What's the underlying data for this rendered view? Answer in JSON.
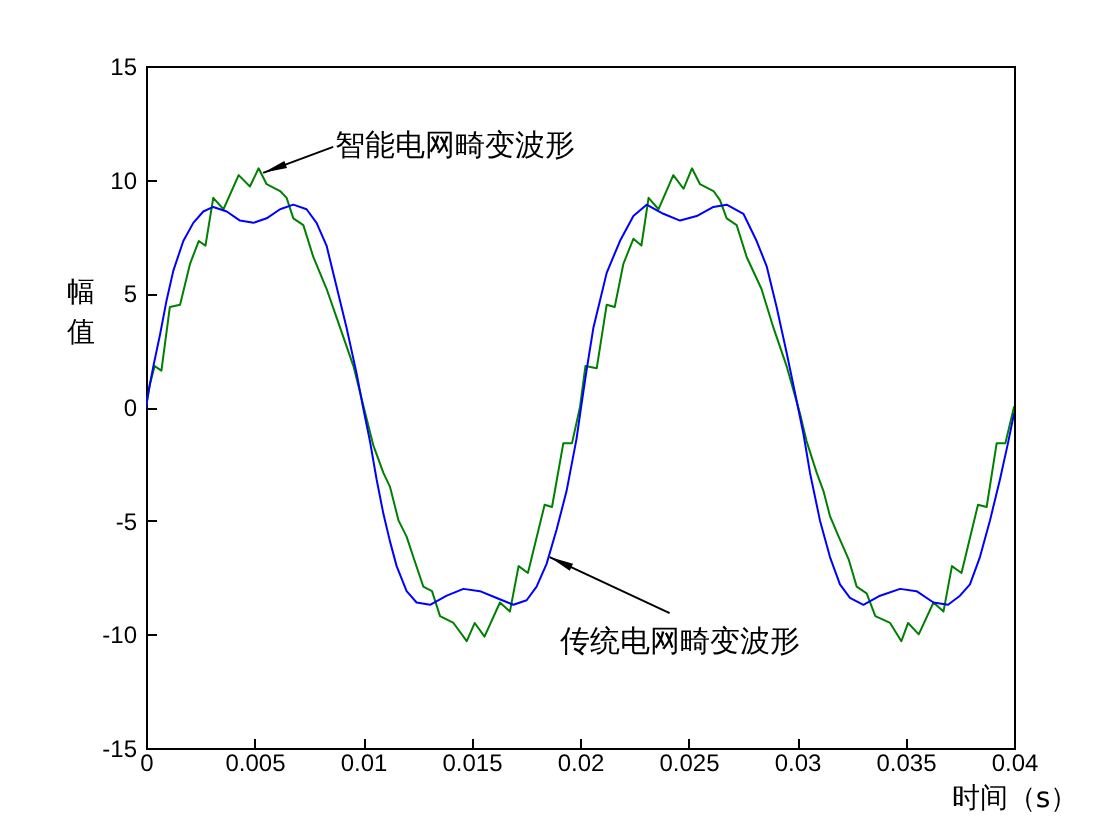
{
  "chart_data": {
    "type": "line",
    "xlabel": "时间（s）",
    "ylabel": "幅值",
    "xlim": [
      0,
      0.04
    ],
    "ylim": [
      -15,
      15
    ],
    "xticks": [
      0,
      0.005,
      0.01,
      0.015,
      0.02,
      0.025,
      0.03,
      0.035,
      0.04
    ],
    "yticks": [
      -15,
      -10,
      -5,
      0,
      5,
      10,
      15
    ],
    "grid": false,
    "series": [
      {
        "color": "#008000",
        "x": [
          0,
          0.00018,
          0.0004,
          0.00071,
          0.0011,
          0.00157,
          0.00203,
          0.00243,
          0.00274,
          0.0031,
          0.00357,
          0.00427,
          0.00479,
          0.00519,
          0.00556,
          0.00618,
          0.00648,
          0.00679,
          0.00725,
          0.00771,
          0.00832,
          0.00894,
          0.00956,
          0.01011,
          0.01048,
          0.01094,
          0.01124,
          0.01164,
          0.01201,
          0.01232,
          0.01278,
          0.01318,
          0.01355,
          0.01417,
          0.01478,
          0.01515,
          0.0156,
          0.01631,
          0.01677,
          0.01717,
          0.0176,
          0.01837,
          0.01871,
          0.01923,
          0.01963,
          0.02,
          0.02025,
          0.02077,
          0.02123,
          0.0216,
          0.022,
          0.02246,
          0.02283,
          0.02316,
          0.02362,
          0.0243,
          0.02477,
          0.02516,
          0.02553,
          0.02615,
          0.02645,
          0.02676,
          0.02722,
          0.02768,
          0.02836,
          0.02891,
          0.02952,
          0.03014,
          0.03044,
          0.03091,
          0.03122,
          0.03152,
          0.03192,
          0.03238,
          0.03275,
          0.03321,
          0.03361,
          0.03429,
          0.03481,
          0.03512,
          0.03561,
          0.03629,
          0.03675,
          0.03714,
          0.03758,
          0.03834,
          0.03874,
          0.0392,
          0.0396,
          0.04
        ],
        "values": [
          0,
          1.0,
          1.8,
          1.6,
          4.4,
          4.5,
          6.3,
          7.3,
          7.1,
          9.2,
          8.7,
          10.2,
          9.7,
          10.5,
          9.8,
          9.5,
          9.2,
          8.3,
          8.0,
          6.6,
          5.2,
          3.5,
          1.8,
          -0.3,
          -1.7,
          -2.9,
          -3.5,
          -5.0,
          -5.7,
          -6.6,
          -7.9,
          -8.1,
          -9.2,
          -9.5,
          -10.3,
          -9.5,
          -10.1,
          -8.6,
          -9.0,
          -7.0,
          -7.3,
          -4.3,
          -4.4,
          -1.6,
          -1.6,
          0,
          1.8,
          1.7,
          4.5,
          4.4,
          6.3,
          7.4,
          7.1,
          9.2,
          8.7,
          10.2,
          9.6,
          10.5,
          9.8,
          9.5,
          9.1,
          8.3,
          8.0,
          6.6,
          5.2,
          3.5,
          1.8,
          -0.3,
          -1.5,
          -2.9,
          -3.7,
          -4.8,
          -5.7,
          -6.7,
          -7.9,
          -8.2,
          -9.2,
          -9.5,
          -10.3,
          -9.5,
          -10.0,
          -8.6,
          -9.0,
          -7.0,
          -7.3,
          -4.3,
          -4.4,
          -1.6,
          -1.6,
          0
        ]
      },
      {
        "color": "#0000ff",
        "x": [
          0,
          0.0001,
          0.00034,
          0.00065,
          0.00095,
          0.00126,
          0.00172,
          0.00218,
          0.00264,
          0.0031,
          0.00372,
          0.00433,
          0.00495,
          0.00556,
          0.00618,
          0.00679,
          0.0074,
          0.00786,
          0.00832,
          0.00878,
          0.00924,
          0.0097,
          0.01,
          0.01032,
          0.01063,
          0.01094,
          0.01124,
          0.01155,
          0.01201,
          0.01247,
          0.01309,
          0.01386,
          0.01463,
          0.01539,
          0.01616,
          0.01693,
          0.01754,
          0.018,
          0.01846,
          0.01892,
          0.01938,
          0.01984,
          0.02005,
          0.0203,
          0.02062,
          0.02123,
          0.02184,
          0.02246,
          0.02307,
          0.02384,
          0.02461,
          0.02538,
          0.02615,
          0.02676,
          0.02753,
          0.02814,
          0.0286,
          0.02906,
          0.02952,
          0.03,
          0.0303,
          0.0306,
          0.03106,
          0.03152,
          0.03198,
          0.03244,
          0.03306,
          0.03383,
          0.03475,
          0.03551,
          0.03629,
          0.03696,
          0.03751,
          0.03797,
          0.03843,
          0.03889,
          0.03935,
          0.03972,
          0.04
        ],
        "values": [
          0,
          0.6,
          1.8,
          3.2,
          4.7,
          6.0,
          7.3,
          8.1,
          8.6,
          8.8,
          8.6,
          8.2,
          8.1,
          8.3,
          8.7,
          8.9,
          8.7,
          8.1,
          7.1,
          5.3,
          3.5,
          1.5,
          0,
          -1.5,
          -3.2,
          -4.7,
          -5.9,
          -7.0,
          -8.1,
          -8.6,
          -8.7,
          -8.3,
          -8.0,
          -8.1,
          -8.4,
          -8.7,
          -8.5,
          -7.9,
          -6.9,
          -5.4,
          -3.7,
          -1.4,
          0,
          1.6,
          3.5,
          5.9,
          7.3,
          8.4,
          8.9,
          8.5,
          8.2,
          8.4,
          8.8,
          8.9,
          8.5,
          7.3,
          6.2,
          4.4,
          2.4,
          0.2,
          -1.2,
          -2.9,
          -5.0,
          -6.6,
          -7.8,
          -8.4,
          -8.7,
          -8.3,
          -8.0,
          -8.1,
          -8.6,
          -8.7,
          -8.3,
          -7.8,
          -6.6,
          -5.0,
          -3.2,
          -1.6,
          -0.3
        ]
      }
    ],
    "annotations": [
      {
        "text": "智能电网畸变波形",
        "x": 0.0054,
        "y": 10.3
      },
      {
        "text": "传统电网畸变波形",
        "x": 0.0186,
        "y": -6.6
      }
    ]
  }
}
